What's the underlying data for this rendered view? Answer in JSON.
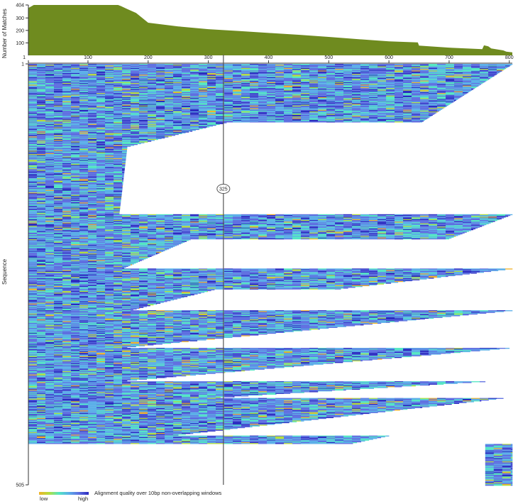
{
  "chart_data": [
    {
      "type": "area",
      "ylabel": "Number of Matches",
      "y_ticks": [
        100,
        200,
        300,
        404
      ],
      "ylim": [
        0,
        404
      ],
      "xlim": [
        1,
        805
      ],
      "x_ticks": [
        100,
        200,
        300,
        400,
        500,
        600,
        700,
        800
      ],
      "fill_color": "#6f8b1f",
      "points": [
        [
          1,
          380
        ],
        [
          10,
          404
        ],
        [
          150,
          404
        ],
        [
          155,
          395
        ],
        [
          165,
          372
        ],
        [
          180,
          340
        ],
        [
          200,
          262
        ],
        [
          250,
          232
        ],
        [
          300,
          210
        ],
        [
          350,
          196
        ],
        [
          400,
          180
        ],
        [
          450,
          165
        ],
        [
          500,
          148
        ],
        [
          550,
          130
        ],
        [
          600,
          112
        ],
        [
          648,
          104
        ],
        [
          650,
          78
        ],
        [
          700,
          62
        ],
        [
          755,
          50
        ],
        [
          758,
          80
        ],
        [
          765,
          72
        ],
        [
          770,
          55
        ],
        [
          790,
          40
        ],
        [
          795,
          30
        ],
        [
          805,
          24
        ]
      ]
    },
    {
      "type": "heatmap",
      "ylabel": "Sequence",
      "y_ticks": [
        1,
        505
      ],
      "x_ticks": [
        1,
        100,
        200,
        300,
        400,
        500,
        600,
        700,
        800
      ],
      "ylim": [
        1,
        505
      ],
      "xlim": [
        1,
        805
      ],
      "cursor_position": 325,
      "legend": {
        "label": "Alignment quality over 10bp non-overlapping windows",
        "low": "low",
        "high": "high",
        "colors": [
          "#f0b22a",
          "#b4de3c",
          "#52e6c2",
          "#5aaee8",
          "#5d6ee0",
          "#2b2bc0"
        ]
      },
      "groups": [
        {
          "from": 1,
          "to": 70,
          "end_start": 805,
          "end_stop": 655
        },
        {
          "from": 71,
          "to": 100,
          "end_start": 330,
          "end_stop": 165
        },
        {
          "from": 101,
          "to": 180,
          "end_start": 165,
          "end_stop": 152
        },
        {
          "from": 181,
          "to": 210,
          "end_start": 805,
          "end_stop": 700
        },
        {
          "from": 211,
          "to": 245,
          "end_start": 270,
          "end_stop": 160
        },
        {
          "from": 246,
          "to": 270,
          "end_start": 805,
          "end_stop": 520
        },
        {
          "from": 271,
          "to": 295,
          "end_start": 310,
          "end_stop": 175
        },
        {
          "from": 296,
          "to": 340,
          "end_start": 805,
          "end_stop": 165
        },
        {
          "from": 341,
          "to": 380,
          "end_start": 800,
          "end_stop": 165
        },
        {
          "from": 381,
          "to": 400,
          "end_start": 760,
          "end_stop": 320
        },
        {
          "from": 401,
          "to": 445,
          "end_start": 790,
          "end_stop": 250
        },
        {
          "from": 446,
          "to": 455,
          "end_start": 600,
          "end_stop": 540
        },
        {
          "from": 456,
          "to": 505,
          "end_start": 805,
          "end_stop": 805,
          "start": 760
        }
      ]
    }
  ]
}
